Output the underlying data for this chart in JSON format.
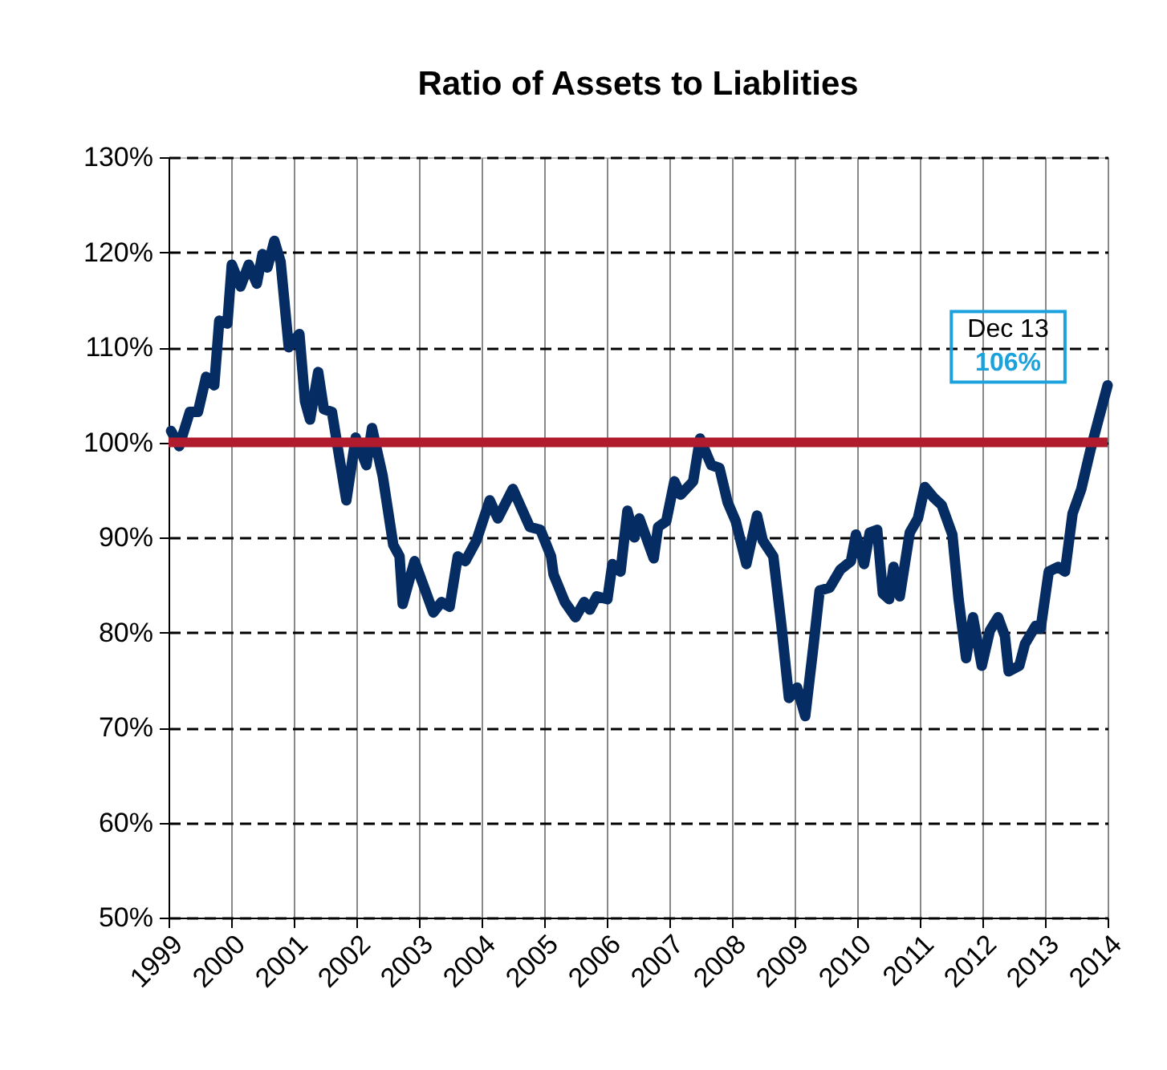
{
  "chart_data": {
    "type": "line",
    "title": "Ratio of Assets to Liablities",
    "x": [
      1999.04,
      1999.17,
      1999.34,
      1999.47,
      1999.6,
      1999.73,
      1999.81,
      1999.94,
      2000.01,
      2000.15,
      2000.28,
      2000.41,
      2000.5,
      2000.58,
      2000.69,
      2000.79,
      2000.92,
      2001.09,
      2001.18,
      2001.26,
      2001.39,
      2001.48,
      2001.61,
      2001.84,
      2001.99,
      2002.16,
      2002.25,
      2002.42,
      2002.59,
      2002.69,
      2002.74,
      2002.93,
      2003.23,
      2003.36,
      2003.49,
      2003.62,
      2003.74,
      2003.92,
      2004.13,
      2004.26,
      2004.5,
      2004.77,
      2004.94,
      2005.11,
      2005.15,
      2005.33,
      2005.5,
      2005.64,
      2005.73,
      2005.84,
      2006.01,
      2006.09,
      2006.22,
      2006.33,
      2006.44,
      2006.52,
      2006.75,
      2006.82,
      2006.95,
      2007.08,
      2007.18,
      2007.38,
      2007.49,
      2007.67,
      2007.8,
      2007.93,
      2008.06,
      2008.23,
      2008.4,
      2008.49,
      2008.66,
      2008.79,
      2008.91,
      2009.04,
      2009.17,
      2009.3,
      2009.4,
      2009.56,
      2009.73,
      2009.9,
      2009.98,
      2010.11,
      2010.2,
      2010.32,
      2010.41,
      2010.51,
      2010.58,
      2010.68,
      2010.84,
      2010.97,
      2011.08,
      2011.22,
      2011.35,
      2011.52,
      2011.62,
      2011.74,
      2011.85,
      2011.99,
      2012.12,
      2012.25,
      2012.36,
      2012.42,
      2012.59,
      2012.68,
      2012.85,
      2012.93,
      2013.06,
      2013.21,
      2013.32,
      2013.44,
      2013.58,
      2013.73,
      2014.0
    ],
    "series": [
      {
        "color": "#062d63",
        "values": [
          101.2,
          99.6,
          103.2,
          103.2,
          106.9,
          106.0,
          112.8,
          112.5,
          118.7,
          116.4,
          118.7,
          116.7,
          119.8,
          118.4,
          121.2,
          119.0,
          110.0,
          111.4,
          104.3,
          102.4,
          107.4,
          103.5,
          103.2,
          93.9,
          100.5,
          97.6,
          101.5,
          96.5,
          89.2,
          88.0,
          83.0,
          87.5,
          82.1,
          83.2,
          82.7,
          88.0,
          87.5,
          89.7,
          93.9,
          92.0,
          95.1,
          91.1,
          90.8,
          88.0,
          86.1,
          83.2,
          81.6,
          83.2,
          82.4,
          83.8,
          83.5,
          87.2,
          86.4,
          92.8,
          90.0,
          92.0,
          87.8,
          91.1,
          91.7,
          95.9,
          94.5,
          95.9,
          100.4,
          97.6,
          97.3,
          93.7,
          91.7,
          87.2,
          92.3,
          89.7,
          88.0,
          80.7,
          73.1,
          74.2,
          71.2,
          78.5,
          84.4,
          84.7,
          86.6,
          87.5,
          90.3,
          87.2,
          90.5,
          90.8,
          84.1,
          83.5,
          86.9,
          83.8,
          90.5,
          92.0,
          95.3,
          94.2,
          93.4,
          90.3,
          83.5,
          77.3,
          81.6,
          76.5,
          80.2,
          81.6,
          79.6,
          75.9,
          76.5,
          78.8,
          80.7,
          80.4,
          86.4,
          86.9,
          86.4,
          92.5,
          95.1,
          99.3,
          106.0
        ]
      }
    ],
    "xlim": [
      1999,
      2014
    ],
    "xticks": [
      1999,
      2000,
      2001,
      2002,
      2003,
      2004,
      2005,
      2006,
      2007,
      2008,
      2009,
      2010,
      2011,
      2012,
      2013,
      2014
    ],
    "ylim": [
      50,
      130
    ],
    "yticks": [
      {
        "value": 50,
        "label": "50%"
      },
      {
        "value": 60,
        "label": "60%"
      },
      {
        "value": 70,
        "label": "70%"
      },
      {
        "value": 80,
        "label": "80%"
      },
      {
        "value": 90,
        "label": "90%"
      },
      {
        "value": 100,
        "label": "100%"
      },
      {
        "value": 110,
        "label": "110%"
      },
      {
        "value": 120,
        "label": "120%"
      },
      {
        "value": 130,
        "label": "130%"
      }
    ],
    "ref_lines": [
      {
        "axis": "y",
        "value": 100,
        "color": "#b01c2e"
      }
    ],
    "annotations": [
      {
        "text": "Dec 13",
        "x": 2014,
        "y": 106
      },
      {
        "text": "106%",
        "x": 2014,
        "y": 106
      }
    ],
    "grid": true,
    "marker": "none",
    "line_style": "solid"
  }
}
